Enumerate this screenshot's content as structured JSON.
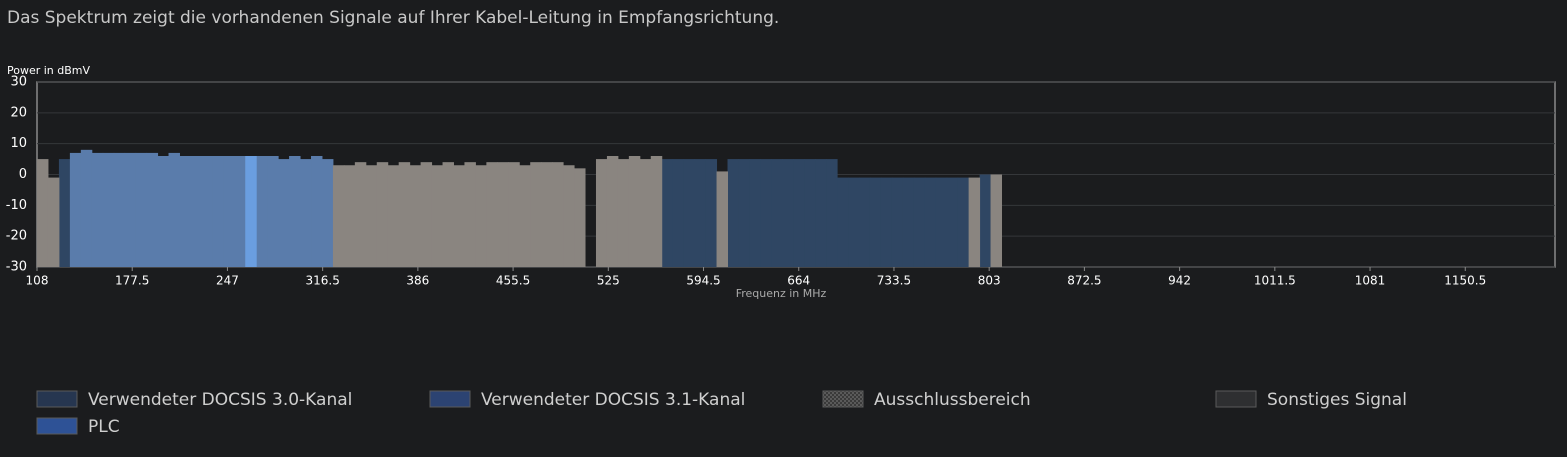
{
  "header": {
    "text": "Das Spektrum zeigt die vorhandenen Signale auf Ihrer Kabel-Leitung in Empfangsrichtung."
  },
  "chart_data": {
    "type": "spectrum",
    "y_label": "Power in dBmV",
    "x_label": "Frequenz in MHz",
    "xlim": [
      108,
      1216
    ],
    "xticks": [
      108,
      177.5,
      247,
      316.5,
      386,
      455.5,
      525,
      594.5,
      664,
      733.5,
      803,
      872.5,
      942,
      1011.5,
      1081,
      1150.5
    ],
    "ylim": [
      -30,
      30
    ],
    "yticks": [
      -30,
      -20,
      -10,
      0,
      10,
      20,
      30
    ],
    "grid": true,
    "x": [
      108,
      116,
      124,
      132,
      140,
      148,
      156,
      164,
      172,
      180,
      188,
      196,
      204,
      212,
      220,
      228,
      236,
      244,
      252,
      260,
      268,
      276,
      284,
      292,
      300,
      308,
      316,
      324,
      332,
      340,
      348,
      356,
      364,
      372,
      380,
      388,
      396,
      404,
      412,
      420,
      428,
      436,
      444,
      452,
      460,
      468,
      476,
      484,
      492,
      500,
      508,
      516,
      524,
      532,
      540,
      548,
      556,
      564,
      572,
      580,
      588,
      596,
      604,
      612,
      620,
      628,
      636,
      644,
      652,
      660,
      668,
      676,
      684,
      692,
      700,
      708,
      716,
      724,
      732,
      740,
      748,
      756,
      764,
      772,
      780,
      788,
      796,
      804
    ],
    "series": [
      {
        "name": "Verwendeter DOCSIS 3.0-Kanal",
        "color": "#2f4663",
        "swatch": "#263650",
        "values": [
          null,
          null,
          5,
          null,
          null,
          null,
          null,
          null,
          null,
          null,
          null,
          null,
          null,
          null,
          null,
          null,
          null,
          null,
          null,
          null,
          null,
          null,
          null,
          null,
          null,
          null,
          null,
          null,
          null,
          null,
          null,
          null,
          null,
          null,
          null,
          null,
          null,
          null,
          null,
          null,
          null,
          null,
          null,
          null,
          null,
          null,
          null,
          null,
          null,
          null,
          null,
          null,
          null,
          null,
          null,
          null,
          null,
          5,
          5,
          5,
          5,
          5,
          null,
          5,
          5,
          5,
          5,
          5,
          5,
          5,
          5,
          5,
          5,
          -1,
          -1,
          -1,
          -1,
          -1,
          -1,
          -1,
          -1,
          -1,
          -1,
          -1,
          -1,
          null,
          0,
          null
        ]
      },
      {
        "name": "Verwendeter DOCSIS 3.1-Kanal",
        "color": "#5a7cab",
        "swatch": "#2c4372",
        "values": [
          null,
          null,
          null,
          7,
          8,
          7,
          7,
          7,
          7,
          7,
          7,
          6,
          7,
          6,
          6,
          6,
          6,
          6,
          6,
          null,
          6,
          6,
          5,
          6,
          5,
          6,
          5,
          null,
          null,
          null,
          null,
          null,
          null,
          null,
          null,
          null,
          null,
          null,
          null,
          null,
          null,
          null,
          null,
          null,
          null,
          null,
          null,
          null,
          null,
          null,
          null,
          null,
          null,
          null,
          null,
          null,
          null,
          null,
          null,
          null,
          null,
          null,
          null,
          null,
          null,
          null,
          null,
          null,
          null,
          null,
          null,
          null,
          null,
          null,
          null,
          null,
          null,
          null,
          null,
          null,
          null,
          null,
          null,
          null,
          null,
          null,
          null,
          null
        ]
      },
      {
        "name": "Sonstiges Signal",
        "color": "#8a8580",
        "swatch": "#2e2f31",
        "values": [
          5,
          -1,
          null,
          null,
          null,
          null,
          null,
          null,
          null,
          null,
          null,
          null,
          null,
          null,
          null,
          null,
          null,
          null,
          null,
          null,
          null,
          null,
          null,
          null,
          null,
          null,
          null,
          3,
          3,
          4,
          3,
          4,
          3,
          4,
          3,
          4,
          3,
          4,
          3,
          4,
          3,
          4,
          4,
          4,
          3,
          4,
          4,
          4,
          3,
          2,
          null,
          5,
          6,
          5,
          6,
          5,
          6,
          null,
          null,
          null,
          null,
          null,
          1,
          null,
          null,
          null,
          null,
          null,
          null,
          null,
          null,
          null,
          null,
          null,
          null,
          null,
          null,
          null,
          null,
          null,
          null,
          null,
          null,
          null,
          null,
          -1,
          null,
          0
        ]
      },
      {
        "name": "PLC",
        "color": "#6a9ee0",
        "swatch": "#2e5296",
        "values": [
          null,
          null,
          null,
          null,
          null,
          null,
          null,
          null,
          null,
          null,
          null,
          null,
          null,
          null,
          null,
          null,
          null,
          null,
          null,
          6,
          null,
          null,
          null,
          null,
          null,
          null,
          null,
          null,
          null,
          null,
          null,
          null,
          null,
          null,
          null,
          null,
          null,
          null,
          null,
          null,
          null,
          null,
          null,
          null,
          null,
          null,
          null,
          null,
          null,
          null,
          null,
          null,
          null,
          null,
          null,
          null,
          null,
          null,
          null,
          null,
          null,
          null,
          null,
          null,
          null,
          null,
          null,
          null,
          null,
          null,
          null,
          null,
          null,
          null,
          null,
          null,
          null,
          null,
          null,
          null,
          null,
          null,
          null,
          null,
          null,
          null,
          null,
          null
        ]
      }
    ],
    "exclusion": {
      "name": "Ausschlussbereich",
      "ranges": []
    }
  }
}
